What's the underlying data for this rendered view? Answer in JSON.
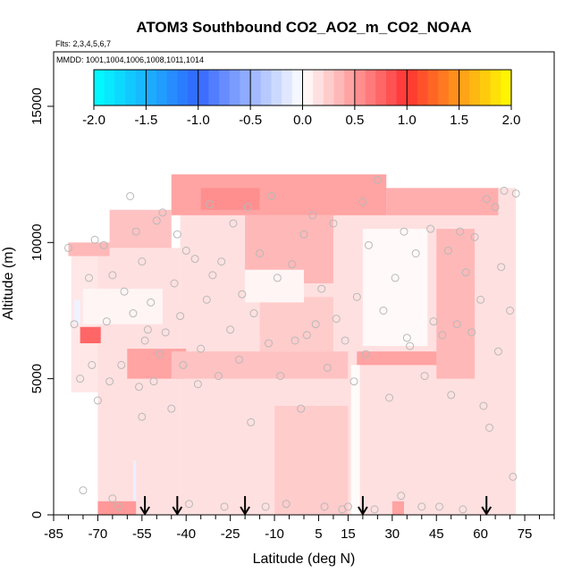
{
  "chart_data": {
    "type": "heatmap",
    "title": "ATOM3 Southbound CO2_AO2_m_CO2_NOAA",
    "flights_label": "Flts: 2,3,4,5,6,7",
    "dates_label": "MMDD: 1001,1004,1006,1008,1011,1014",
    "xlabel": "Latitude (deg N)",
    "ylabel": "Altitude (m)",
    "xlim": [
      -85,
      85
    ],
    "ylim": [
      0,
      17000
    ],
    "x_ticks": [
      -85,
      -70,
      -55,
      -40,
      -25,
      -10,
      5,
      15,
      30,
      45,
      60,
      75
    ],
    "x_minor_ticks": [
      -80,
      -75,
      -65,
      -60,
      -50,
      -45,
      -35,
      -30,
      -20,
      -15,
      -5,
      0,
      10,
      20,
      25,
      35,
      40,
      50,
      55,
      65,
      70,
      80,
      85
    ],
    "x_tick_labels": [
      "-85",
      "-70",
      "-55",
      "-40",
      "-25",
      "-10",
      "5",
      "15",
      "30",
      "45",
      "60",
      "75"
    ],
    "y_ticks": [
      0,
      5000,
      10000,
      15000
    ],
    "y_tick_labels": [
      "0",
      "5000",
      "10000",
      "15000"
    ],
    "colorbar": {
      "range": [
        -2.0,
        2.0
      ],
      "ticks": [
        -2.0,
        -1.5,
        -1.0,
        -0.5,
        0.0,
        0.5,
        1.0,
        1.5,
        2.0
      ],
      "tick_labels": [
        "-2.0",
        "-1.5",
        "-1.0",
        "-0.5",
        "0.0",
        "0.5",
        "1.0",
        "1.5",
        "2.0"
      ],
      "colors": [
        "#00ffff",
        "#3366ff",
        "#ffffff",
        "#ff3333",
        "#ffff00"
      ]
    },
    "arrow_latitudes": [
      -54,
      -43,
      -20,
      20,
      62
    ],
    "cells": [
      {
        "lat": [
          -42,
          72
        ],
        "alt": [
          0,
          12000
        ],
        "v": 0.15
      },
      {
        "lat": [
          -70,
          -42
        ],
        "alt": [
          0,
          9800
        ],
        "v": 0.15
      },
      {
        "lat": [
          -79,
          -70
        ],
        "alt": [
          4500,
          9800
        ],
        "v": 0.12
      },
      {
        "lat": [
          -80,
          -66
        ],
        "alt": [
          9500,
          10000
        ],
        "v": 0.35
      },
      {
        "lat": [
          -66,
          -45
        ],
        "alt": [
          9800,
          11200
        ],
        "v": 0.3
      },
      {
        "lat": [
          -45,
          28
        ],
        "alt": [
          11000,
          12500
        ],
        "v": 0.45
      },
      {
        "lat": [
          28,
          66
        ],
        "alt": [
          11000,
          12000
        ],
        "v": 0.4
      },
      {
        "lat": [
          -35,
          -15
        ],
        "alt": [
          11200,
          12000
        ],
        "v": 0.55
      },
      {
        "lat": [
          -20,
          10
        ],
        "alt": [
          8500,
          11000
        ],
        "v": 0.35
      },
      {
        "lat": [
          -76,
          -69
        ],
        "alt": [
          6300,
          6900
        ],
        "v": 0.75
      },
      {
        "lat": [
          -78,
          -76
        ],
        "alt": [
          7000,
          7900
        ],
        "v": -0.08
      },
      {
        "lat": [
          -60,
          -40
        ],
        "alt": [
          5000,
          6100
        ],
        "v": 0.45
      },
      {
        "lat": [
          -45,
          15
        ],
        "alt": [
          5000,
          6000
        ],
        "v": 0.3
      },
      {
        "lat": [
          18,
          55
        ],
        "alt": [
          5500,
          6000
        ],
        "v": 0.45
      },
      {
        "lat": [
          45,
          58
        ],
        "alt": [
          5000,
          10500
        ],
        "v": 0.35
      },
      {
        "lat": [
          -15,
          10
        ],
        "alt": [
          6000,
          8000
        ],
        "v": 0.25
      },
      {
        "lat": [
          -75,
          -48
        ],
        "alt": [
          7000,
          8300
        ],
        "v": 0.05
      },
      {
        "lat": [
          -20,
          0
        ],
        "alt": [
          7800,
          9000
        ],
        "v": 0.05
      },
      {
        "lat": [
          20,
          42
        ],
        "alt": [
          6200,
          10500
        ],
        "v": 0.03
      },
      {
        "lat": [
          -58,
          -57
        ],
        "alt": [
          0,
          2000
        ],
        "v": -0.1
      },
      {
        "lat": [
          -70,
          -57
        ],
        "alt": [
          0,
          500
        ],
        "v": 0.5
      },
      {
        "lat": [
          16,
          19
        ],
        "alt": [
          0,
          5500
        ],
        "v": 0.02
      },
      {
        "lat": [
          30,
          34
        ],
        "alt": [
          0,
          500
        ],
        "v": 0.45
      },
      {
        "lat": [
          -10,
          15
        ],
        "alt": [
          0,
          4000
        ],
        "v": 0.25
      }
    ],
    "points": [
      [
        -80,
        9800
      ],
      [
        -78,
        7000
      ],
      [
        -76,
        5000
      ],
      [
        -75,
        900
      ],
      [
        -73,
        8700
      ],
      [
        -72,
        5500
      ],
      [
        -71,
        10100
      ],
      [
        -70,
        4200
      ],
      [
        -68,
        9900
      ],
      [
        -67,
        7100
      ],
      [
        -66,
        4900
      ],
      [
        -65,
        8800
      ],
      [
        -65,
        600
      ],
      [
        -63,
        300
      ],
      [
        -62,
        5500
      ],
      [
        -61,
        8200
      ],
      [
        -59,
        11700
      ],
      [
        -58,
        7400
      ],
      [
        -57,
        10400
      ],
      [
        -56,
        4700
      ],
      [
        -55,
        3600
      ],
      [
        -55,
        9300
      ],
      [
        -54,
        6400
      ],
      [
        -53,
        6800
      ],
      [
        -52,
        7800
      ],
      [
        -51,
        4900
      ],
      [
        -50,
        10800
      ],
      [
        -49,
        5900
      ],
      [
        -48,
        11100
      ],
      [
        -47,
        6700
      ],
      [
        -45,
        3900
      ],
      [
        -44,
        8500
      ],
      [
        -43,
        10300
      ],
      [
        -42,
        7300
      ],
      [
        -41,
        5500
      ],
      [
        -40,
        9700
      ],
      [
        -39,
        400
      ],
      [
        -37,
        9400
      ],
      [
        -36,
        4800
      ],
      [
        -35,
        6100
      ],
      [
        -33,
        7900
      ],
      [
        -32,
        11400
      ],
      [
        -31,
        8800
      ],
      [
        -29,
        5100
      ],
      [
        -28,
        9300
      ],
      [
        -27,
        300
      ],
      [
        -25,
        6800
      ],
      [
        -24,
        10700
      ],
      [
        -22,
        5700
      ],
      [
        -21,
        8100
      ],
      [
        -19,
        11300
      ],
      [
        -18,
        3400
      ],
      [
        -17,
        7400
      ],
      [
        -15,
        9600
      ],
      [
        -13,
        300
      ],
      [
        -12,
        6300
      ],
      [
        -11,
        11700
      ],
      [
        -9,
        8700
      ],
      [
        -8,
        5100
      ],
      [
        -6,
        400
      ],
      [
        -4,
        9200
      ],
      [
        -3,
        6400
      ],
      [
        -1,
        3900
      ],
      [
        0,
        10300
      ],
      [
        1,
        6600
      ],
      [
        3,
        11000
      ],
      [
        4,
        7000
      ],
      [
        6,
        8300
      ],
      [
        7,
        300
      ],
      [
        8,
        5400
      ],
      [
        10,
        10700
      ],
      [
        11,
        7200
      ],
      [
        13,
        200
      ],
      [
        14,
        6400
      ],
      [
        15,
        300
      ],
      [
        17,
        4900
      ],
      [
        18,
        8000
      ],
      [
        20,
        11500
      ],
      [
        21,
        5900
      ],
      [
        22,
        9900
      ],
      [
        24,
        200
      ],
      [
        25,
        12300
      ],
      [
        27,
        7500
      ],
      [
        29,
        4300
      ],
      [
        31,
        8700
      ],
      [
        33,
        700
      ],
      [
        34,
        10400
      ],
      [
        35,
        6500
      ],
      [
        36,
        6200
      ],
      [
        38,
        9600
      ],
      [
        40,
        300
      ],
      [
        41,
        5100
      ],
      [
        43,
        10500
      ],
      [
        44,
        7100
      ],
      [
        46,
        300
      ],
      [
        47,
        6600
      ],
      [
        49,
        9700
      ],
      [
        50,
        4400
      ],
      [
        52,
        7000
      ],
      [
        53,
        10400
      ],
      [
        54,
        200
      ],
      [
        55,
        8900
      ],
      [
        57,
        6700
      ],
      [
        58,
        10200
      ],
      [
        60,
        7900
      ],
      [
        61,
        4000
      ],
      [
        62,
        11600
      ],
      [
        63,
        3200
      ],
      [
        65,
        11300
      ],
      [
        66,
        6000
      ],
      [
        67,
        9100
      ],
      [
        68,
        11900
      ],
      [
        70,
        7500
      ],
      [
        71,
        1400
      ],
      [
        72,
        11800
      ]
    ]
  }
}
